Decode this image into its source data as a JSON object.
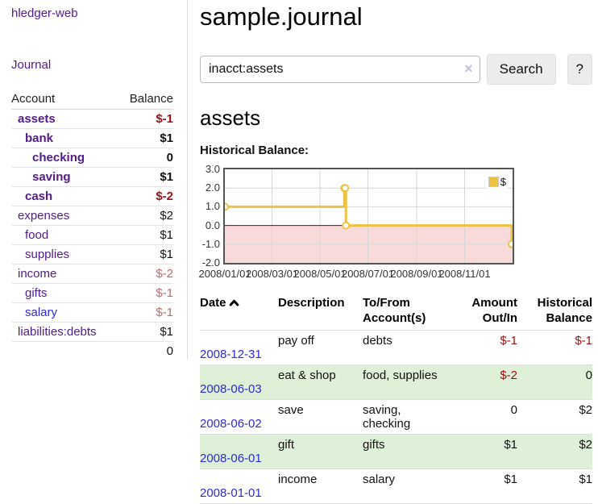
{
  "sidebar": {
    "app_title": "hledger-web",
    "journal_link": "Journal",
    "accounts_header": {
      "account": "Account",
      "balance": "Balance"
    },
    "accounts": [
      {
        "name": "assets",
        "depth": 1,
        "bold": true,
        "balance": "$-1"
      },
      {
        "name": "bank",
        "depth": 2,
        "bold": true,
        "balance": "$1"
      },
      {
        "name": "checking",
        "depth": 3,
        "bold": true,
        "balance": "0"
      },
      {
        "name": "saving",
        "depth": 3,
        "bold": true,
        "balance": "$1"
      },
      {
        "name": "cash",
        "depth": 2,
        "bold": true,
        "balance": "$-2"
      },
      {
        "name": "expenses",
        "depth": 1,
        "bold": false,
        "balance": "$2"
      },
      {
        "name": "food",
        "depth": 2,
        "bold": false,
        "balance": "$1"
      },
      {
        "name": "supplies",
        "depth": 2,
        "bold": false,
        "balance": "$1"
      },
      {
        "name": "income",
        "depth": 1,
        "bold": false,
        "balance": "$-2"
      },
      {
        "name": "gifts",
        "depth": 2,
        "bold": false,
        "balance": "$-1"
      },
      {
        "name": "salary",
        "depth": 2,
        "bold": false,
        "balance": "$-1",
        "blue_link": true
      },
      {
        "name": "liabilities:debts",
        "depth": 1,
        "bold": false,
        "balance": "$1"
      }
    ],
    "total": "0"
  },
  "main": {
    "title": "sample.journal",
    "search": {
      "query": "inacct:assets",
      "clear_icon": "×",
      "button_label": "Search",
      "help_label": "?"
    },
    "account_heading": "assets",
    "table": {
      "headers": {
        "date": "Date",
        "description": "Description",
        "accounts": "To/From\nAccount(s)",
        "amount": "Amount\nOut/In",
        "balance": "Historical\nBalance"
      },
      "rows": [
        {
          "date": "2008-12-31",
          "description": "pay off",
          "accounts": "debts",
          "amount": "$-1",
          "balance": "$-1"
        },
        {
          "date": "2008-06-03",
          "description": "eat & shop",
          "accounts": "food, supplies",
          "amount": "$-2",
          "balance": "0"
        },
        {
          "date": "2008-06-02",
          "description": "save",
          "accounts": "saving,\nchecking",
          "amount": "0",
          "balance": "$2"
        },
        {
          "date": "2008-06-01",
          "description": "gift",
          "accounts": "gifts",
          "amount": "$1",
          "balance": "$2"
        },
        {
          "date": "2008-01-01",
          "description": "income",
          "accounts": "salary",
          "amount": "$1",
          "balance": "$1"
        }
      ]
    }
  },
  "chart_data": {
    "type": "line",
    "title": "Historical Balance:",
    "series_label": "$",
    "step": true,
    "grid": true,
    "legend_position": "top-right",
    "xlim": [
      "2008-01-01",
      "2009-01-01"
    ],
    "ylim": [
      -2,
      3
    ],
    "yticks": [
      {
        "value": 3,
        "label": "3.0"
      },
      {
        "value": 2,
        "label": "2.0"
      },
      {
        "value": 1,
        "label": "1.0"
      },
      {
        "value": 0,
        "label": "0.0"
      },
      {
        "value": -1,
        "label": "-1.0"
      },
      {
        "value": -2,
        "label": "-2.0"
      }
    ],
    "xticks": [
      {
        "date": "2008-01-01",
        "label": "2008/01/01"
      },
      {
        "date": "2008-03-01",
        "label": "2008/03/01"
      },
      {
        "date": "2008-05-01",
        "label": "2008/05/01"
      },
      {
        "date": "2008-07-01",
        "label": "2008/07/01"
      },
      {
        "date": "2008-09-01",
        "label": "2008/09/01"
      },
      {
        "date": "2008-11-01",
        "label": "2008/11/01"
      }
    ],
    "zero_line_color": "#8b0000",
    "negative_region_color": "#f9dada",
    "series": [
      {
        "name": "$",
        "color": "#edc240",
        "points": [
          {
            "x": "2008-01-01",
            "y": 1
          },
          {
            "x": "2008-06-01",
            "y": 2
          },
          {
            "x": "2008-06-02",
            "y": 2
          },
          {
            "x": "2008-06-03",
            "y": 0
          },
          {
            "x": "2008-12-31",
            "y": -1
          }
        ]
      }
    ]
  }
}
